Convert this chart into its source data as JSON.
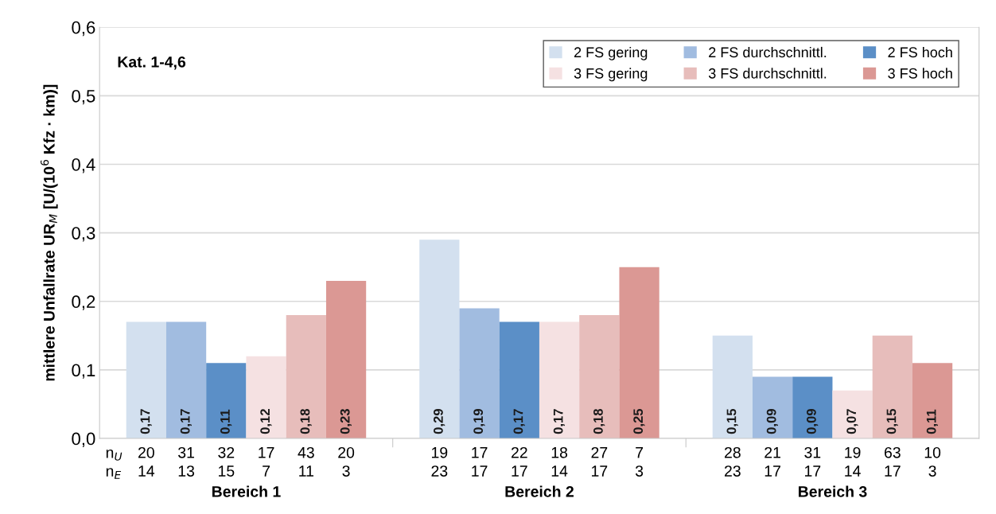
{
  "chart_data": {
    "type": "bar",
    "ylabel": "mittlere Unfallrate UR$_{M}$ [U/(10$^{6}$ Kfz · km)]",
    "categories": [
      "Bereich 1",
      "Bereich 2",
      "Bereich 3"
    ],
    "series": [
      {
        "name": "2 FS gering",
        "color": "#d3e0ef",
        "values": [
          0.17,
          0.29,
          0.15
        ],
        "value_labels": [
          "0,17",
          "0,29",
          "0,15"
        ]
      },
      {
        "name": "2 FS durchschnittl.",
        "color": "#a1bce0",
        "values": [
          0.17,
          0.19,
          0.09
        ],
        "value_labels": [
          "0,17",
          "0,19",
          "0,09"
        ]
      },
      {
        "name": "2 FS hoch",
        "color": "#5b8fc7",
        "values": [
          0.11,
          0.17,
          0.09
        ],
        "value_labels": [
          "0,11",
          "0,17",
          "0,09"
        ]
      },
      {
        "name": "3 FS gering",
        "color": "#f5e1e2",
        "values": [
          0.12,
          0.17,
          0.07
        ],
        "value_labels": [
          "0,12",
          "0,17",
          "0,07"
        ]
      },
      {
        "name": "3 FS durchschnittl.",
        "color": "#e7bdbb",
        "values": [
          0.18,
          0.18,
          0.15
        ],
        "value_labels": [
          "0,18",
          "0,18",
          "0,15"
        ]
      },
      {
        "name": "3 FS hoch",
        "color": "#db9894",
        "values": [
          0.23,
          0.25,
          0.11
        ],
        "value_labels": [
          "0,23",
          "0,25",
          "0,11"
        ]
      }
    ],
    "ylim": [
      0,
      0.6
    ],
    "yticks": [
      {
        "value": 0,
        "label": "0,0"
      },
      {
        "value": 0.1,
        "label": "0,1"
      },
      {
        "value": 0.2,
        "label": "0,2"
      },
      {
        "value": 0.3,
        "label": "0,3"
      },
      {
        "value": 0.4,
        "label": "0,4"
      },
      {
        "value": 0.5,
        "label": "0,5"
      },
      {
        "value": 0.6,
        "label": "0,6"
      }
    ],
    "grid": "y",
    "legend": "top right",
    "annotations": [
      "Kat. 1-4,6",
      "n$_{U}$",
      "n$_{E}$",
      "20",
      "14",
      "31",
      "13",
      "32",
      "15",
      "17",
      "7",
      "43",
      "11",
      "20",
      "3",
      "19",
      "23",
      "17",
      "17",
      "22",
      "17",
      "18",
      "14",
      "27",
      "17",
      "7",
      "3",
      "28",
      "23",
      "21",
      "17",
      "31",
      "17",
      "19",
      "14",
      "63",
      "17",
      "10",
      "3"
    ]
  }
}
